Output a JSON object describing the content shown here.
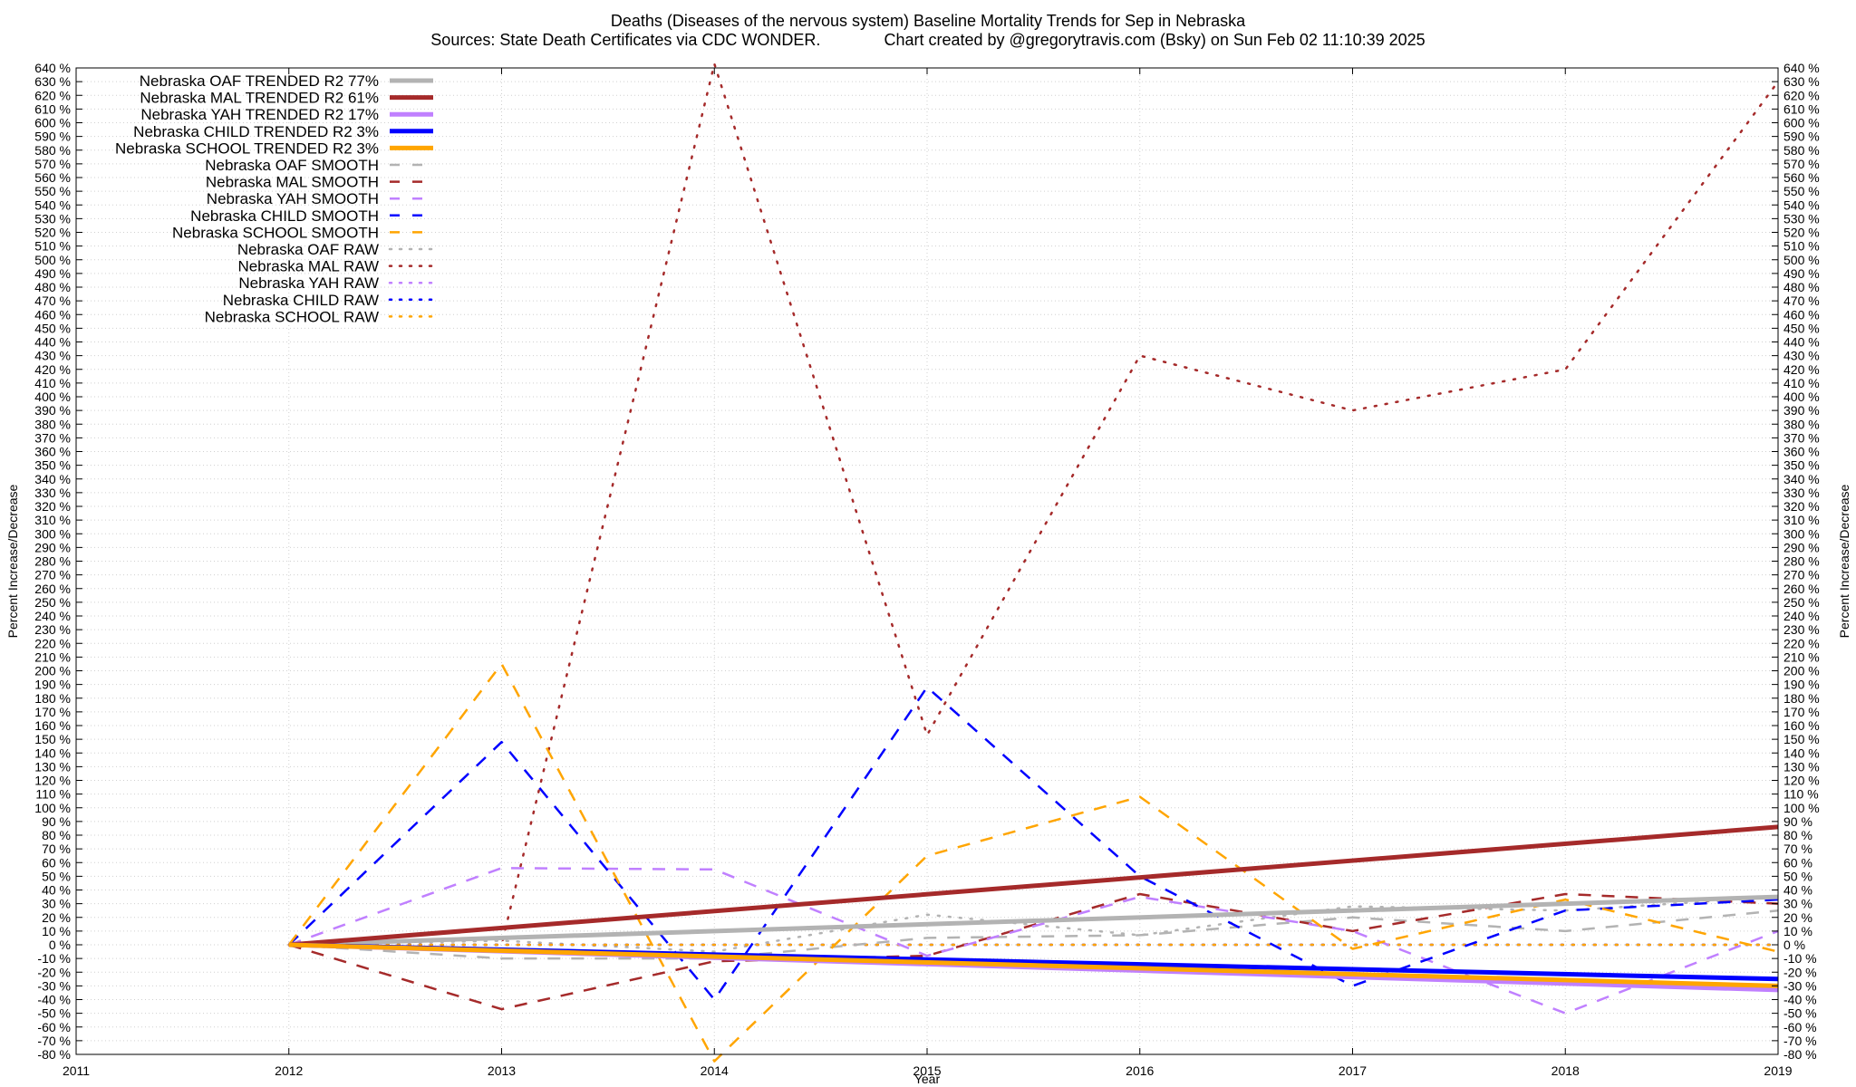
{
  "header": {
    "title": "Deaths (Diseases of the nervous system)  Baseline Mortality Trends for Sep in Nebraska",
    "subtitle": "Sources: State Death Certificates via CDC WONDER.              Chart created by @gregorytravis.com (Bsky) on Sun Feb 02 11:10:39 2025"
  },
  "chart_data": {
    "type": "line",
    "xlabel": "Year",
    "ylabel": "Percent Increase/Decrease",
    "y2label": "Percent Increase/Decrease",
    "xlim": [
      2011,
      2019
    ],
    "ylim": [
      -80,
      640
    ],
    "ytick_step": 10,
    "ytick_suffix": " %",
    "x_ticks": [
      "2011",
      "2012",
      "2013",
      "2014",
      "2015",
      "2016",
      "2017",
      "2018",
      "2019"
    ],
    "grid": true,
    "legend_position": "top-left",
    "colors": {
      "OAF": "#b3b3b3",
      "MAL": "#a52a2a",
      "YAH": "#c080ff",
      "CHILD": "#0000ff",
      "SCHOOL": "#ffa500"
    },
    "series": [
      {
        "name": "Nebraska OAF TRENDED R2  77%",
        "group": "OAF",
        "style": "trend",
        "x": [
          2012,
          2019
        ],
        "y": [
          0,
          35
        ]
      },
      {
        "name": "Nebraska MAL TRENDED R2  61%",
        "group": "MAL",
        "style": "trend",
        "x": [
          2012,
          2019
        ],
        "y": [
          0,
          86
        ]
      },
      {
        "name": "Nebraska YAH TRENDED R2  17%",
        "group": "YAH",
        "style": "trend",
        "x": [
          2012,
          2019
        ],
        "y": [
          0,
          -33
        ]
      },
      {
        "name": "Nebraska CHILD TRENDED R2  3%",
        "group": "CHILD",
        "style": "trend",
        "x": [
          2012,
          2019
        ],
        "y": [
          0,
          -25
        ]
      },
      {
        "name": "Nebraska SCHOOL TRENDED R2  3%",
        "group": "SCHOOL",
        "style": "trend",
        "x": [
          2012,
          2019
        ],
        "y": [
          0,
          -30
        ]
      },
      {
        "name": "Nebraska OAF SMOOTH",
        "group": "OAF",
        "style": "smooth",
        "x": [
          2012,
          2013,
          2014,
          2015,
          2016,
          2017,
          2018,
          2019
        ],
        "y": [
          0,
          -10,
          -10,
          5,
          7,
          20,
          10,
          25
        ]
      },
      {
        "name": "Nebraska MAL SMOOTH",
        "group": "MAL",
        "style": "smooth",
        "x": [
          2012,
          2013,
          2014,
          2015,
          2016,
          2017,
          2018,
          2019
        ],
        "y": [
          0,
          -47,
          -12,
          -8,
          37,
          10,
          37,
          30
        ]
      },
      {
        "name": "Nebraska YAH SMOOTH",
        "group": "YAH",
        "style": "smooth",
        "x": [
          2012,
          2013,
          2014,
          2015,
          2016,
          2017,
          2018,
          2019
        ],
        "y": [
          0,
          56,
          55,
          -8,
          35,
          10,
          -50,
          10
        ]
      },
      {
        "name": "Nebraska CHILD SMOOTH",
        "group": "CHILD",
        "style": "smooth",
        "x": [
          2012,
          2013,
          2014,
          2015,
          2016,
          2017,
          2018,
          2019
        ],
        "y": [
          0,
          148,
          -40,
          188,
          50,
          -30,
          25,
          33
        ]
      },
      {
        "name": "Nebraska SCHOOL SMOOTH",
        "group": "SCHOOL",
        "style": "smooth",
        "x": [
          2012,
          2013,
          2014,
          2015,
          2016,
          2017,
          2018,
          2019
        ],
        "y": [
          0,
          205,
          -85,
          65,
          108,
          -3,
          33,
          -5
        ]
      },
      {
        "name": "Nebraska OAF RAW",
        "group": "OAF",
        "style": "raw",
        "x": [
          2012,
          2013,
          2014,
          2015,
          2016,
          2017,
          2018,
          2019
        ],
        "y": [
          0,
          3,
          -5,
          22,
          7,
          28,
          25,
          35
        ]
      },
      {
        "name": "Nebraska MAL RAW",
        "group": "MAL",
        "style": "raw",
        "x": [
          2012,
          2013,
          2014,
          2015,
          2016,
          2017,
          2018,
          2019
        ],
        "y": [
          0,
          0,
          643,
          153,
          430,
          390,
          420,
          630
        ]
      },
      {
        "name": "Nebraska YAH RAW",
        "group": "YAH",
        "style": "raw",
        "x": [
          2012,
          2013,
          2014,
          2015,
          2016,
          2017,
          2018,
          2019
        ],
        "y": [
          0,
          0,
          0,
          0,
          0,
          0,
          0,
          0
        ]
      },
      {
        "name": "Nebraska CHILD RAW",
        "group": "CHILD",
        "style": "raw",
        "x": [
          2012,
          2013,
          2014,
          2015,
          2016,
          2017,
          2018,
          2019
        ],
        "y": [
          0,
          0,
          0,
          0,
          0,
          0,
          0,
          0
        ]
      },
      {
        "name": "Nebraska SCHOOL RAW",
        "group": "SCHOOL",
        "style": "raw",
        "x": [
          2012,
          2013,
          2014,
          2015,
          2016,
          2017,
          2018,
          2019
        ],
        "y": [
          0,
          0,
          0,
          0,
          0,
          0,
          0,
          0
        ]
      }
    ]
  }
}
